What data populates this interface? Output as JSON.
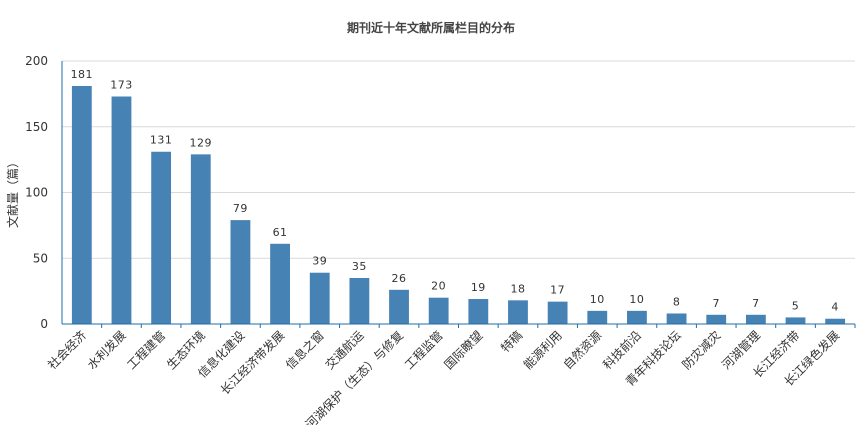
{
  "colors": {
    "bar": "#4682B4",
    "grid": "#d9d9d9",
    "axis": "#1f6fa8",
    "text": "#333333",
    "title": "#444444"
  },
  "chart_data": {
    "type": "bar",
    "title": "期刊近十年文献所属栏目的分布",
    "ylabel": "文献量（篇）",
    "xlabel": "",
    "ylim": [
      0,
      200
    ],
    "yticks": [
      0,
      50,
      100,
      150,
      200
    ],
    "grid": true,
    "legend": "none",
    "categories": [
      "社会经济",
      "水利发展",
      "工程建管",
      "生态环境",
      "信息化建设",
      "长江经济带发展",
      "信息之窗",
      "交通航运",
      "河湖保护（生态）与修复",
      "工程监管",
      "国际瞭望",
      "特稿",
      "能源利用",
      "自然资源",
      "科技前沿",
      "青年科技论坛",
      "防灾减灾",
      "河湖管理",
      "长江经济带",
      "长江绿色发展"
    ],
    "values": [
      181,
      173,
      131,
      129,
      79,
      61,
      39,
      35,
      26,
      20,
      19,
      18,
      17,
      10,
      10,
      8,
      7,
      7,
      5,
      4
    ]
  }
}
